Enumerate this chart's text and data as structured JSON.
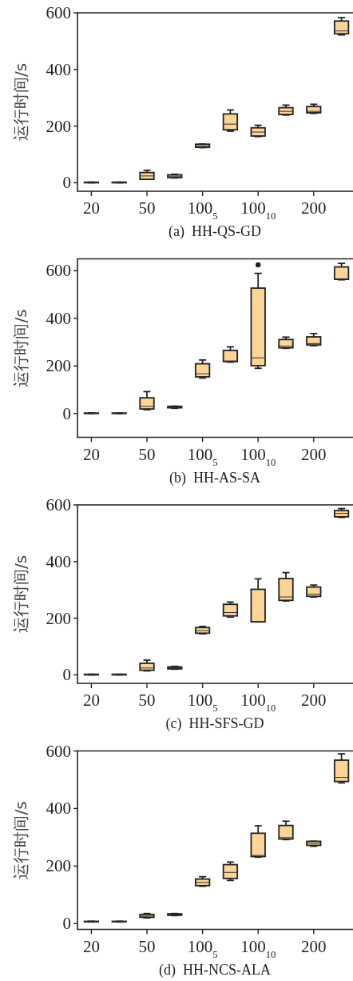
{
  "chart_data": [
    {
      "type": "box",
      "title": "(a)  HH-QS-GD",
      "ylabel": "运行时间/s",
      "color": "#fcd495",
      "categories": [
        "20",
        null,
        "50",
        null,
        "100$_{5}$",
        null,
        "100$_{10}$",
        null,
        "200",
        null
      ],
      "ylim": [
        -30,
        600
      ],
      "yticks": [
        0,
        200,
        400,
        600
      ],
      "boxes": [
        {
          "low": 0,
          "q1": 0,
          "median": 1,
          "q3": 2,
          "high": 2
        },
        {
          "low": 0,
          "q1": 0,
          "median": 1,
          "q3": 2,
          "high": 2
        },
        {
          "low": 12,
          "q1": 12,
          "median": 24,
          "q3": 36,
          "high": 44
        },
        {
          "low": 17,
          "q1": 18,
          "median": 23,
          "q3": 28,
          "high": 30
        },
        {
          "low": 124,
          "q1": 125,
          "median": 130,
          "q3": 136,
          "high": 137
        },
        {
          "low": 182,
          "q1": 187,
          "median": 207,
          "q3": 243,
          "high": 257
        },
        {
          "low": 163,
          "q1": 165,
          "median": 179,
          "q3": 194,
          "high": 203
        },
        {
          "low": 239,
          "q1": 241,
          "median": 252,
          "q3": 265,
          "high": 274
        },
        {
          "low": 245,
          "q1": 247,
          "median": 252,
          "q3": 269,
          "high": 277
        },
        {
          "low": 522,
          "q1": 526,
          "median": 536,
          "q3": 571,
          "high": 583
        }
      ]
    },
    {
      "type": "box",
      "title": "(b)  HH-AS-SA",
      "ylabel": "运行时间/s",
      "color": "#fcd495",
      "categories": [
        "20",
        null,
        "50",
        null,
        "100$_{5}$",
        null,
        "100$_{10}$",
        null,
        "200",
        null
      ],
      "ylim": [
        -100,
        650
      ],
      "yticks": [
        0,
        200,
        400,
        600
      ],
      "boxes": [
        {
          "low": 0,
          "q1": 0,
          "median": 1,
          "q3": 2,
          "high": 2
        },
        {
          "low": 0,
          "q1": 0,
          "median": 1,
          "q3": 2,
          "high": 2
        },
        {
          "low": 16,
          "q1": 19,
          "median": 30,
          "q3": 66,
          "high": 92
        },
        {
          "low": 22,
          "q1": 24,
          "median": 27,
          "q3": 30,
          "high": 31
        },
        {
          "low": 149,
          "q1": 154,
          "median": 167,
          "q3": 209,
          "high": 225
        },
        {
          "low": 216,
          "q1": 218,
          "median": 221,
          "q3": 265,
          "high": 280
        },
        {
          "low": 190,
          "q1": 201,
          "median": 234,
          "q3": 527,
          "high": 589,
          "outliers": [
            625
          ]
        },
        {
          "low": 274,
          "q1": 276,
          "median": 283,
          "q3": 311,
          "high": 321
        },
        {
          "low": 285,
          "q1": 288,
          "median": 294,
          "q3": 322,
          "high": 336
        },
        {
          "low": 562,
          "q1": 564,
          "median": 566,
          "q3": 616,
          "high": 631
        }
      ]
    },
    {
      "type": "box",
      "title": "(c)  HH-SFS-GD",
      "ylabel": "运行时间/s",
      "color": "#fcd495",
      "categories": [
        "20",
        null,
        "50",
        null,
        "100$_{5}$",
        null,
        "100$_{10}$",
        null,
        "200",
        null
      ],
      "ylim": [
        -30,
        600
      ],
      "yticks": [
        0,
        200,
        400,
        600
      ],
      "boxes": [
        {
          "low": 0,
          "q1": 0,
          "median": 1,
          "q3": 2,
          "high": 2
        },
        {
          "low": 0,
          "q1": 0,
          "median": 1,
          "q3": 2,
          "high": 2
        },
        {
          "low": 14,
          "q1": 16,
          "median": 24,
          "q3": 41,
          "high": 52
        },
        {
          "low": 20,
          "q1": 21,
          "median": 25,
          "q3": 28,
          "high": 30
        },
        {
          "low": 145,
          "q1": 147,
          "median": 156,
          "q3": 167,
          "high": 171
        },
        {
          "low": 204,
          "q1": 208,
          "median": 220,
          "q3": 249,
          "high": 257
        },
        {
          "low": 187,
          "q1": 187,
          "median": 188,
          "q3": 302,
          "high": 339
        },
        {
          "low": 261,
          "q1": 263,
          "median": 275,
          "q3": 340,
          "high": 361
        },
        {
          "low": 275,
          "q1": 277,
          "median": 285,
          "q3": 310,
          "high": 317
        },
        {
          "low": 556,
          "q1": 558,
          "median": 570,
          "q3": 580,
          "high": 587
        }
      ]
    },
    {
      "type": "box",
      "title": "(d)  HH-NCS-ALA",
      "ylabel": "运行时间/s",
      "color": "#fcd495",
      "categories": [
        "20",
        null,
        "50",
        null,
        "100$_{5}$",
        null,
        "100$_{10}$",
        null,
        "200",
        null
      ],
      "ylim": [
        -20,
        600
      ],
      "yticks": [
        0,
        200,
        400,
        600
      ],
      "boxes": [
        {
          "low": 6,
          "q1": 7,
          "median": 7,
          "q3": 8,
          "high": 8
        },
        {
          "low": 6,
          "q1": 7,
          "median": 7,
          "q3": 8,
          "high": 8
        },
        {
          "low": 20,
          "q1": 22,
          "median": 26,
          "q3": 32,
          "high": 35
        },
        {
          "low": 28,
          "q1": 29,
          "median": 31,
          "q3": 34,
          "high": 35
        },
        {
          "low": 130,
          "q1": 132,
          "median": 143,
          "q3": 155,
          "high": 163
        },
        {
          "low": 150,
          "q1": 157,
          "median": 178,
          "q3": 205,
          "high": 214
        },
        {
          "low": 231,
          "q1": 233,
          "median": 237,
          "q3": 314,
          "high": 340
        },
        {
          "low": 292,
          "q1": 294,
          "median": 299,
          "q3": 341,
          "high": 356
        },
        {
          "low": 269,
          "q1": 272,
          "median": 279,
          "q3": 286,
          "high": 286
        },
        {
          "low": 489,
          "q1": 494,
          "median": 508,
          "q3": 568,
          "high": 590
        }
      ]
    }
  ]
}
